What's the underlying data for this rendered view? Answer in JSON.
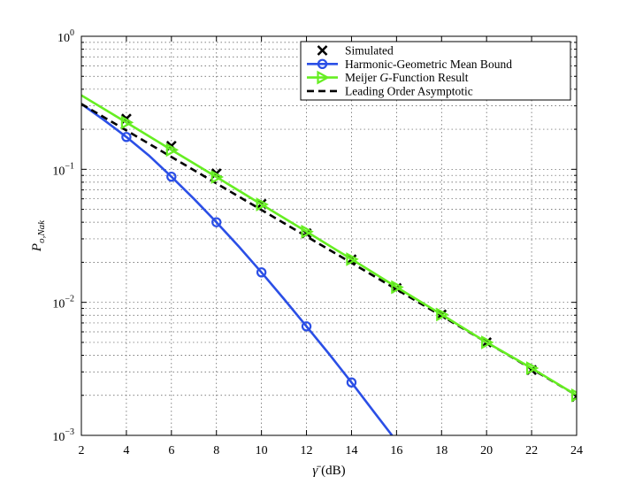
{
  "chart_data": {
    "type": "line",
    "xlabel_main": "γ̄",
    "xlabel_unit": " (dB)",
    "ylabel_main": "P",
    "ylabel_sub": "o,Nak",
    "xlim": [
      2,
      24
    ],
    "ylim": [
      0.001,
      1
    ],
    "yscale": "log",
    "grid": true,
    "legend_position": "top-right",
    "x_ticks": [
      2,
      4,
      6,
      8,
      10,
      12,
      14,
      16,
      18,
      20,
      22,
      24
    ],
    "y_ticks": [
      {
        "value": 0.001,
        "base": "10",
        "exp": "−3"
      },
      {
        "value": 0.01,
        "base": "10",
        "exp": "−2"
      },
      {
        "value": 0.1,
        "base": "10",
        "exp": "−1"
      },
      {
        "value": 1,
        "base": "10",
        "exp": "0"
      }
    ],
    "series": [
      {
        "name": "Simulated",
        "color": "#000000",
        "marker": "x",
        "line": "none",
        "x": [
          4,
          6,
          8,
          10,
          12,
          14,
          16,
          18,
          20,
          22,
          24
        ],
        "y": [
          0.24,
          0.15,
          0.093,
          0.055,
          0.033,
          0.021,
          0.0128,
          0.0081,
          0.005,
          0.0031,
          0.00195
        ]
      },
      {
        "name": "Harmonic-Geometric Mean Bound",
        "color": "#2b4fe6",
        "marker": "o",
        "line": "solid",
        "curve_x": [
          2,
          3,
          4,
          5,
          6,
          7,
          8,
          9,
          10,
          11,
          12,
          13,
          14,
          15,
          15.8
        ],
        "curve_y": [
          0.31,
          0.235,
          0.175,
          0.127,
          0.088,
          0.06,
          0.04,
          0.0262,
          0.0168,
          0.0106,
          0.0066,
          0.0041,
          0.0025,
          0.0015,
          0.001
        ],
        "x": [
          4,
          6,
          8,
          10,
          12,
          14
        ],
        "y": [
          0.175,
          0.088,
          0.04,
          0.0168,
          0.0066,
          0.0025
        ]
      },
      {
        "name": "Meijer G-Function Result",
        "name_parts": [
          "Meijer ",
          "G",
          "-Function Result"
        ],
        "color": "#66ee22",
        "marker": "triangle-right",
        "line": "solid",
        "curve_x": [
          2,
          4,
          6,
          8,
          10,
          12,
          14,
          16,
          18,
          20,
          22,
          24
        ],
        "curve_y": [
          0.36,
          0.225,
          0.14,
          0.0875,
          0.0545,
          0.034,
          0.0211,
          0.013,
          0.0081,
          0.005,
          0.0032,
          0.002
        ],
        "x": [
          4,
          6,
          8,
          10,
          12,
          14,
          16,
          18,
          20,
          22,
          24
        ],
        "y": [
          0.225,
          0.14,
          0.0875,
          0.0545,
          0.034,
          0.0211,
          0.013,
          0.0081,
          0.005,
          0.0032,
          0.002
        ]
      },
      {
        "name": "Leading Order Asymptotic",
        "color": "#000000",
        "marker": "none",
        "line": "dashed",
        "curve_x": [
          2,
          24
        ],
        "curve_y": [
          0.31,
          0.002
        ]
      }
    ]
  }
}
